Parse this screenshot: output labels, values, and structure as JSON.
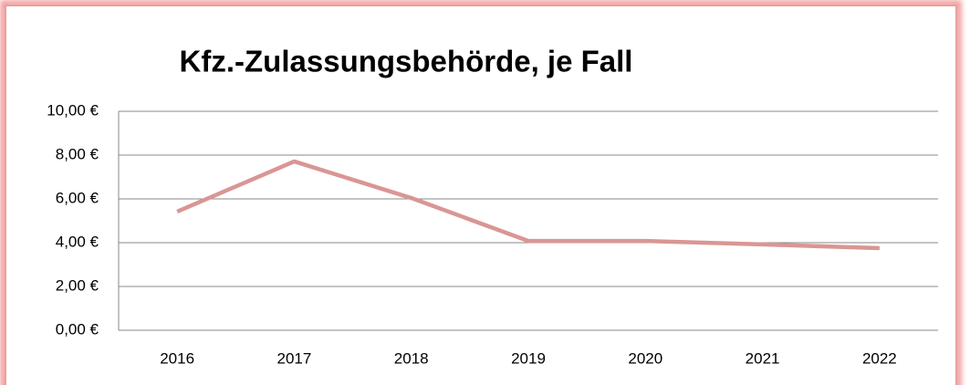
{
  "chart_data": {
    "type": "line",
    "title": "Kfz.-Zulassungsbehörde, je Fall",
    "categories": [
      "2016",
      "2017",
      "2018",
      "2019",
      "2020",
      "2021",
      "2022"
    ],
    "series": [
      {
        "name": "Kfz.-Zulassungsbehörde, je Fall",
        "color": "#d99694",
        "values": [
          5.42,
          7.71,
          6.04,
          4.08,
          4.08,
          3.92,
          3.75
        ]
      }
    ],
    "ylim": [
      0,
      10
    ],
    "yticks": [
      {
        "value": 0,
        "label": "0,00 €"
      },
      {
        "value": 2,
        "label": "2,00 €"
      },
      {
        "value": 4,
        "label": "4,00 €"
      },
      {
        "value": 6,
        "label": "6,00 €"
      },
      {
        "value": 8,
        "label": "8,00 €"
      },
      {
        "value": 10,
        "label": "10,00 €"
      }
    ],
    "grid": true
  }
}
